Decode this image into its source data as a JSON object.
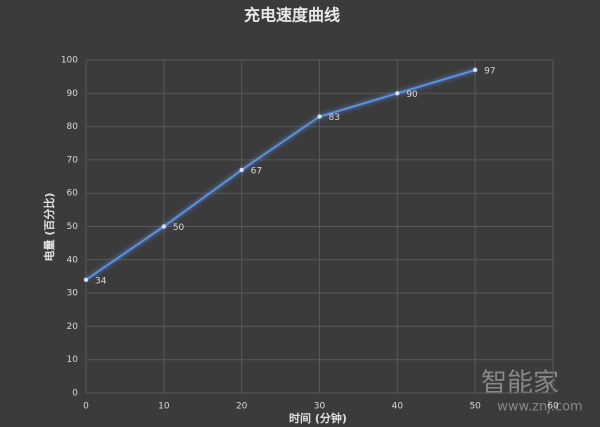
{
  "chart_data": {
    "type": "line",
    "title": "充电速度曲线",
    "x_label": "时间 (分钟)",
    "y_label": "电量 (百分比)",
    "x": [
      0,
      10,
      20,
      30,
      40,
      50
    ],
    "series": [
      {
        "name": "电量",
        "color": "#5b8fe0",
        "values": [
          34,
          50,
          67,
          83,
          90,
          97
        ]
      }
    ],
    "xlim": [
      0,
      60
    ],
    "xticks": [
      0,
      10,
      20,
      30,
      40,
      50,
      60
    ],
    "ylim": [
      0,
      100
    ],
    "yticks": [
      0,
      10,
      20,
      30,
      40,
      50,
      60,
      70,
      80,
      90,
      100
    ],
    "grid": true,
    "data_labels": true
  },
  "watermark": {
    "brand": "智能家",
    "url": "www.znj.com"
  }
}
